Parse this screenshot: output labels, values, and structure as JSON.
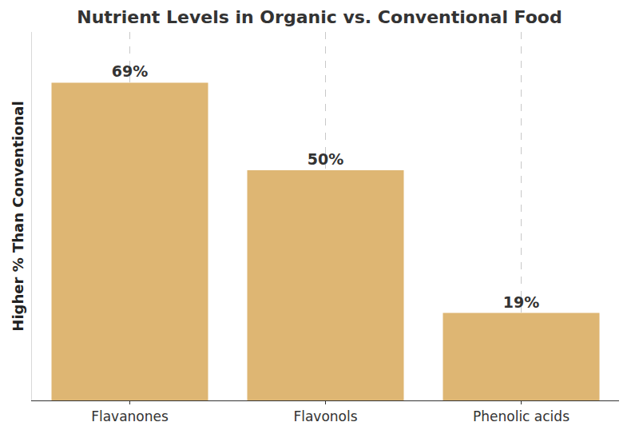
{
  "chart_data": {
    "type": "bar",
    "title": "Nutrient Levels in Organic vs. Conventional Food",
    "y_label": "Higher % Than Conventional",
    "categories": [
      "Flavanones",
      "Flavonols",
      "Phenolic acids"
    ],
    "values": [
      69,
      50,
      19
    ],
    "value_labels": [
      "69%",
      "50%",
      "19%"
    ],
    "color": "#deb673",
    "ylim": [
      0,
      80
    ],
    "grid": true,
    "data_labels": true,
    "tick_labels": "x"
  }
}
